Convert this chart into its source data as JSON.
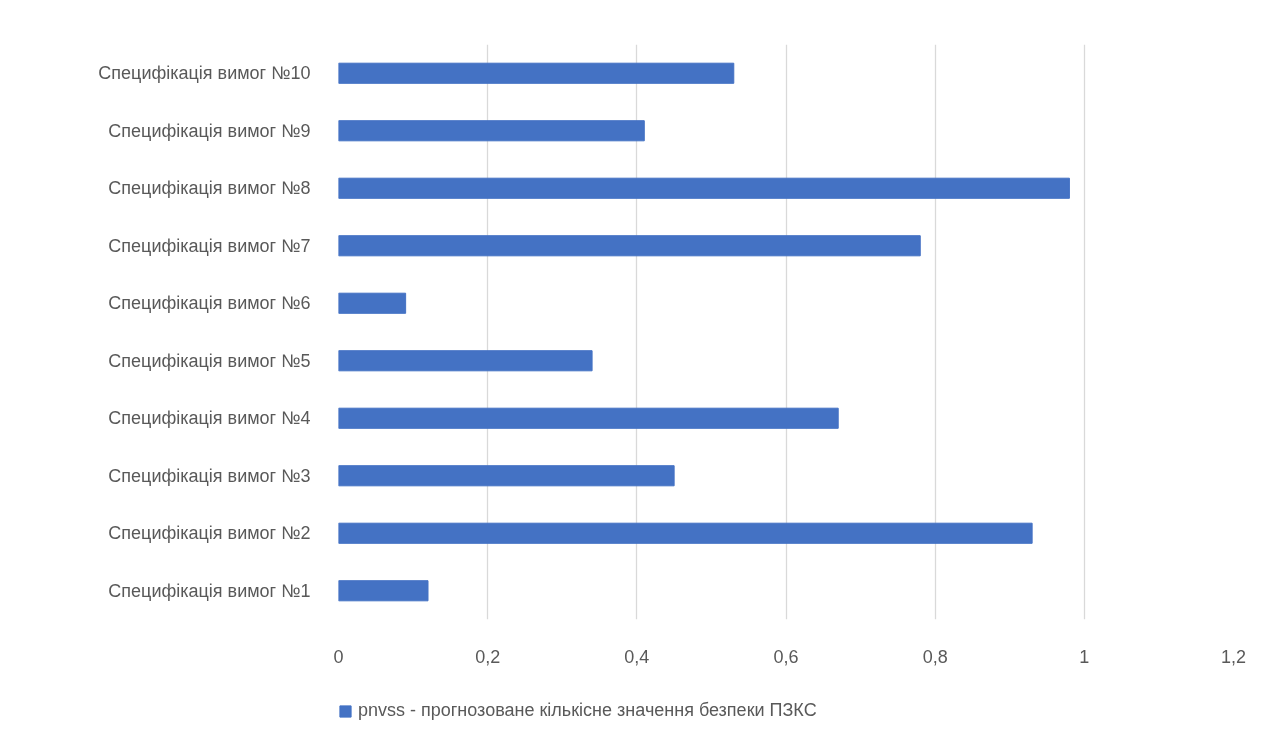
{
  "chart_data": {
    "type": "bar",
    "orientation": "horizontal",
    "categories": [
      "Специфікація вимог №10",
      "Специфікація вимог №9",
      "Специфікація вимог №8",
      "Специфікація вимог №7",
      "Специфікація вимог №6",
      "Специфікація вимог №5",
      "Специфікація вимог №4",
      "Специфікація вимог №3",
      "Специфікація вимог №2",
      "Специфікація вимог №1"
    ],
    "series": [
      {
        "name": "pnvss - прогнозоване кількісне значення безпеки ПЗКС",
        "color": "#4472c4",
        "values": [
          0.53,
          0.41,
          0.98,
          0.78,
          0.09,
          0.34,
          0.67,
          0.45,
          0.93,
          0.12
        ]
      }
    ],
    "xlim": [
      0,
      1.2
    ],
    "xticks": [
      0,
      {
        "value": 0.2,
        "label": "0,2"
      },
      {
        "value": 0.4,
        "label": "0,4"
      },
      {
        "value": 0.6,
        "label": "0,6"
      },
      {
        "value": 0.8,
        "label": "0,8"
      },
      1,
      {
        "value": 1.2,
        "label": "1,2"
      }
    ],
    "grid": "x",
    "legend": "bottom"
  }
}
